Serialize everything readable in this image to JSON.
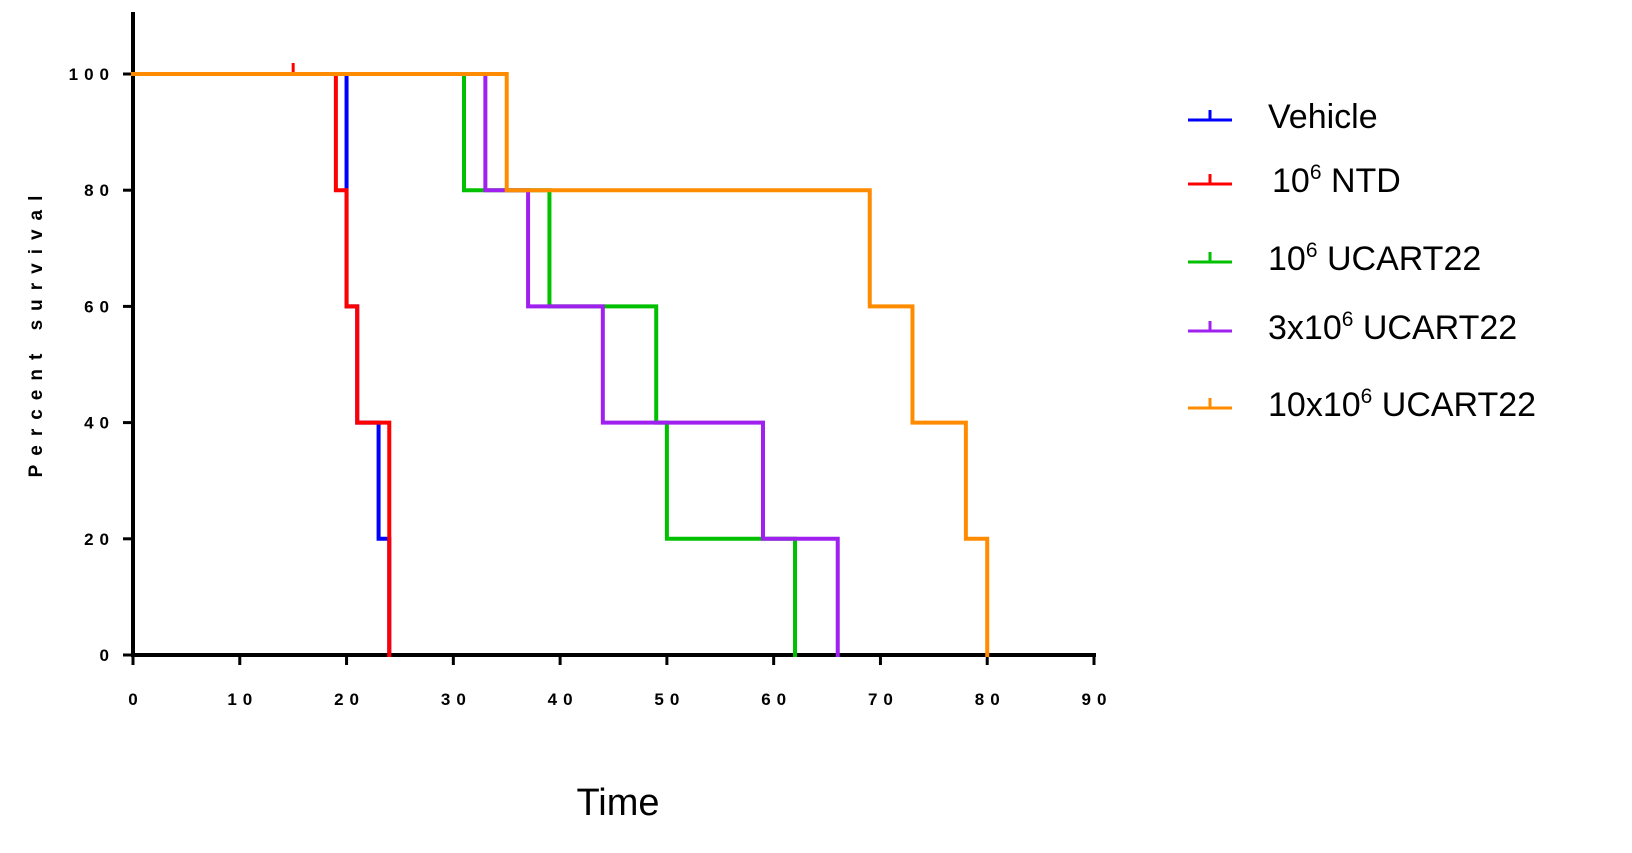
{
  "chart_data": {
    "type": "line",
    "subtype": "kaplan-meier-step",
    "xlabel": "Time",
    "ylabel": "Percent survival",
    "xlim": [
      0,
      90
    ],
    "ylim": [
      0,
      100
    ],
    "xticks": [
      0,
      10,
      20,
      30,
      40,
      50,
      60,
      70,
      80,
      90
    ],
    "yticks": [
      0,
      20,
      40,
      60,
      80,
      100
    ],
    "xtick_labels": [
      "0",
      "10",
      "20",
      "30",
      "40",
      "50",
      "60",
      "70",
      "80",
      "90"
    ],
    "ytick_labels": [
      "0",
      "20",
      "40",
      "60",
      "80",
      "100"
    ],
    "grid": false,
    "legend_position": "right",
    "series": [
      {
        "name": "Vehicle",
        "legend_parts": [
          "Vehicle"
        ],
        "color": "#0000ff",
        "steps": [
          [
            0,
            100
          ],
          [
            20,
            60
          ],
          [
            21,
            40
          ],
          [
            23,
            20
          ],
          [
            24,
            0
          ]
        ],
        "end": 24,
        "censored": []
      },
      {
        "name": "10⁶ NTD",
        "legend_parts": [
          "10",
          "6",
          " NTD"
        ],
        "color": "#ff0000",
        "steps": [
          [
            0,
            100
          ],
          [
            19,
            80
          ],
          [
            20,
            60
          ],
          [
            21,
            40
          ],
          [
            24,
            0
          ]
        ],
        "end": 24,
        "censored": [
          [
            15,
            100
          ]
        ]
      },
      {
        "name": "10⁶ UCART22",
        "legend_parts": [
          "10",
          "6",
          " UCART22"
        ],
        "color": "#00c000",
        "steps": [
          [
            0,
            100
          ],
          [
            31,
            80
          ],
          [
            39,
            60
          ],
          [
            49,
            40
          ],
          [
            50,
            20
          ],
          [
            62,
            0
          ]
        ],
        "end": 62,
        "censored": []
      },
      {
        "name": "3x10⁶ UCART22",
        "legend_parts": [
          "3x10",
          "6",
          " UCART22"
        ],
        "color": "#a020f0",
        "steps": [
          [
            0,
            100
          ],
          [
            33,
            80
          ],
          [
            37,
            60
          ],
          [
            44,
            40
          ],
          [
            59,
            20
          ],
          [
            66,
            0
          ]
        ],
        "end": 66,
        "censored": []
      },
      {
        "name": "10x10⁶ UCART22",
        "legend_parts": [
          "10x10",
          "6",
          " UCART22"
        ],
        "color": "#ff8c00",
        "steps": [
          [
            0,
            100
          ],
          [
            35,
            80
          ],
          [
            69,
            60
          ],
          [
            73,
            40
          ],
          [
            78,
            20
          ],
          [
            80,
            0
          ]
        ],
        "end": 80,
        "censored": []
      }
    ]
  }
}
